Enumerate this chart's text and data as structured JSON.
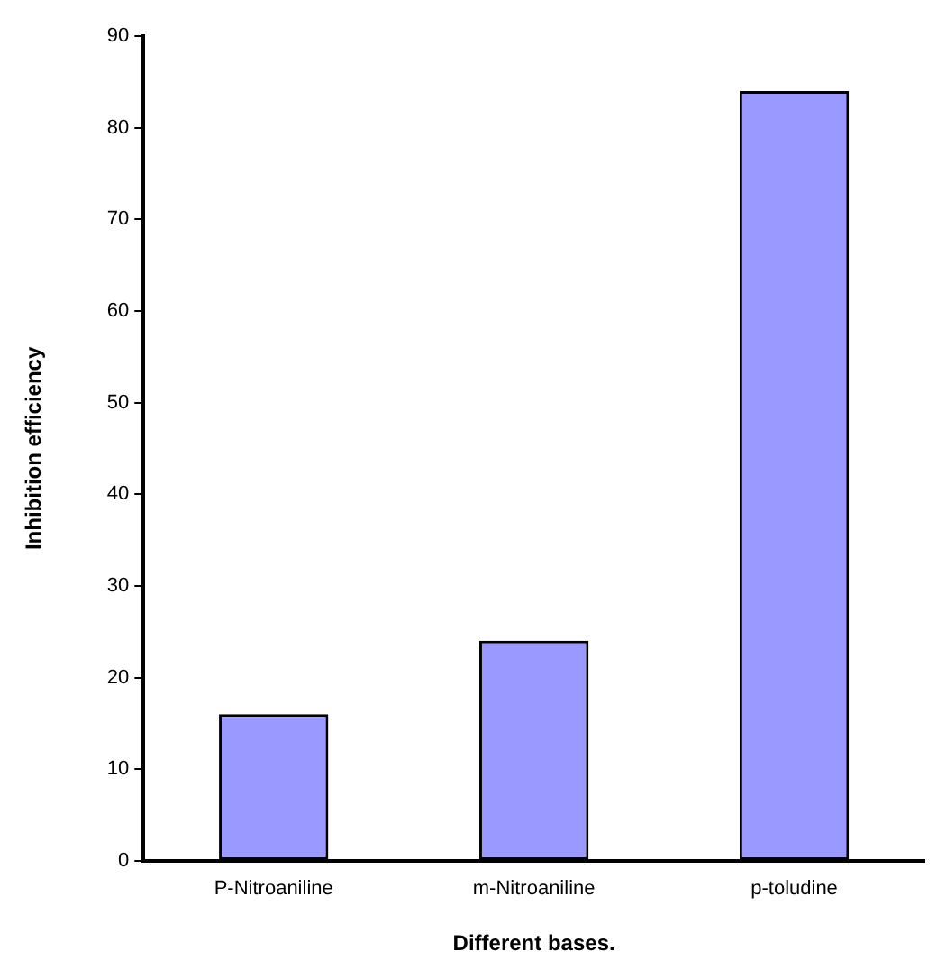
{
  "chart_data": {
    "type": "bar",
    "xlabel": "Different bases.",
    "ylabel": "Inhibition efficiency",
    "categories": [
      "P-Nitroaniline",
      "m-Nitroaniline",
      "p-toludine"
    ],
    "values": [
      16,
      24,
      84
    ],
    "color": "#9999ff",
    "ylim": [
      0,
      90
    ],
    "yticks": [
      0,
      10,
      20,
      30,
      40,
      50,
      60,
      70,
      80,
      90
    ],
    "grid": false,
    "legend": false
  }
}
